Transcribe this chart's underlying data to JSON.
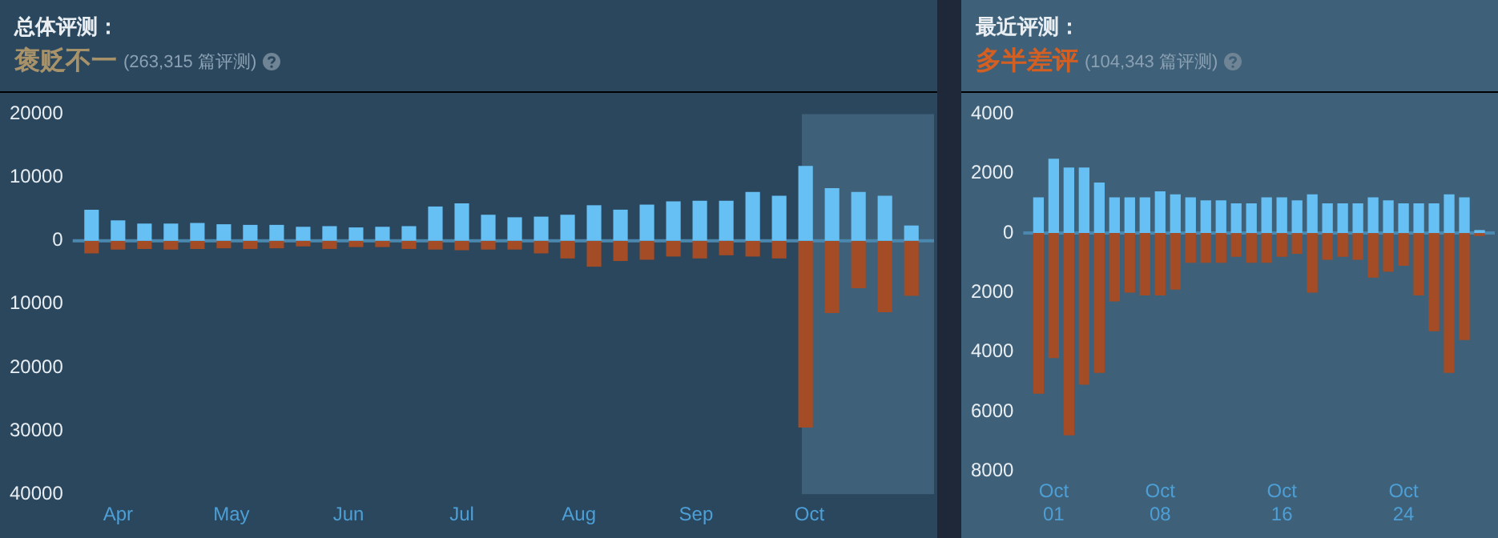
{
  "chart_data": [
    {
      "type": "bar",
      "title": "总体评测：",
      "subtitle": "褒贬不一",
      "annotations": [
        "(263,315 篇评测)"
      ],
      "stacked": true,
      "x": [
        "--03-25",
        "--04-01",
        "--04-08",
        "--04-15",
        "--04-22",
        "--04-29",
        "--05-06",
        "--05-13",
        "--05-20",
        "--05-27",
        "--06-03",
        "--06-10",
        "--06-17",
        "--06-24",
        "--07-01",
        "--07-08",
        "--07-15",
        "--07-22",
        "--07-29",
        "--08-05",
        "--08-12",
        "--08-19",
        "--08-26",
        "--09-02",
        "--09-09",
        "--09-16",
        "--09-23",
        "--09-30",
        "--10-07",
        "--10-14",
        "--10-21",
        "--10-28"
      ],
      "series": [
        {
          "color": "#66c0f4",
          "values": [
            4900,
            3200,
            2700,
            2700,
            2800,
            2600,
            2500,
            2500,
            2200,
            2300,
            2100,
            2200,
            2300,
            5400,
            5900,
            4100,
            3700,
            3800,
            4100,
            5600,
            4900,
            5700,
            6200,
            6300,
            6300,
            7700,
            7100,
            11800,
            8300,
            7700,
            7100,
            2400
          ]
        },
        {
          "color": "#a34c25",
          "values": [
            -2000,
            -1400,
            -1300,
            -1400,
            -1300,
            -1200,
            -1300,
            -1200,
            -900,
            -1300,
            -1000,
            -1000,
            -1300,
            -1400,
            -1500,
            -1400,
            -1400,
            -2000,
            -2800,
            -4100,
            -3200,
            -3000,
            -2500,
            -2800,
            -2300,
            -2500,
            -2800,
            -29500,
            -11400,
            -7500,
            -11300,
            -8700
          ]
        }
      ],
      "xlim": [
        "--03-20",
        "--11-03"
      ],
      "xticks": [
        {
          "value": "--04-01",
          "label": "Apr"
        },
        {
          "value": "--05-01",
          "label": "May"
        },
        {
          "value": "--06-01",
          "label": "Jun"
        },
        {
          "value": "--07-01",
          "label": "Jul"
        },
        {
          "value": "--08-01",
          "label": "Aug"
        },
        {
          "value": "--09-01",
          "label": "Sep"
        },
        {
          "value": "--10-01",
          "label": "Oct"
        }
      ],
      "ylim": [
        -40000,
        20000
      ],
      "yticks": [
        20000,
        10000,
        0,
        {
          "value": -10000,
          "label": "10000"
        },
        {
          "value": -20000,
          "label": "20000"
        },
        {
          "value": -30000,
          "label": "30000"
        },
        {
          "value": -40000,
          "label": "40000"
        }
      ],
      "bands": [
        {
          "axis": "x",
          "from": "--09-29",
          "to": "--11-03",
          "color": "#3e6179"
        }
      ],
      "ref_lines": [
        {
          "axis": "y",
          "value": 0,
          "color": "#4b88b0"
        }
      ]
    },
    {
      "type": "bar",
      "title": "最近评测：",
      "subtitle": "多半差评",
      "annotations": [
        "(104,343 篇评测)"
      ],
      "stacked": true,
      "x": [
        "--09-30",
        "--10-01",
        "--10-02",
        "--10-03",
        "--10-04",
        "--10-05",
        "--10-06",
        "--10-07",
        "--10-08",
        "--10-09",
        "--10-10",
        "--10-11",
        "--10-12",
        "--10-13",
        "--10-14",
        "--10-15",
        "--10-16",
        "--10-17",
        "--10-18",
        "--10-19",
        "--10-20",
        "--10-21",
        "--10-22",
        "--10-23",
        "--10-24",
        "--10-25",
        "--10-26",
        "--10-27",
        "--10-28",
        "--10-29"
      ],
      "series": [
        {
          "color": "#66c0f4",
          "values": [
            1200,
            2500,
            2200,
            2200,
            1700,
            1200,
            1200,
            1200,
            1400,
            1300,
            1200,
            1100,
            1100,
            1000,
            1000,
            1200,
            1200,
            1100,
            1300,
            1000,
            1000,
            1000,
            1200,
            1100,
            1000,
            1000,
            1000,
            1300,
            1200,
            100
          ]
        },
        {
          "color": "#a34c25",
          "values": [
            -5400,
            -4200,
            -6800,
            -5100,
            -4700,
            -2300,
            -2000,
            -2100,
            -2100,
            -1900,
            -1000,
            -1000,
            -1000,
            -800,
            -1000,
            -1000,
            -800,
            -700,
            -2000,
            -900,
            -800,
            -900,
            -1500,
            -1300,
            -1100,
            -2100,
            -3300,
            -4700,
            -3600,
            -100
          ]
        }
      ],
      "xlim": [
        "--09-29",
        "--10-30"
      ],
      "xticks": [
        {
          "value": "--10-01",
          "label": "Oct 01"
        },
        {
          "value": "--10-08",
          "label": "Oct 08"
        },
        {
          "value": "--10-16",
          "label": "Oct 16"
        },
        {
          "value": "--10-24",
          "label": "Oct 24"
        }
      ],
      "ylim": [
        -8000,
        4000
      ],
      "yticks": [
        4000,
        2000,
        0,
        {
          "value": -2000,
          "label": "2000"
        },
        {
          "value": -4000,
          "label": "4000"
        },
        {
          "value": -6000,
          "label": "6000"
        },
        {
          "value": -8000,
          "label": "8000"
        }
      ],
      "ref_lines": [
        {
          "axis": "y",
          "value": 0,
          "color": "#4b88b0"
        }
      ]
    }
  ]
}
